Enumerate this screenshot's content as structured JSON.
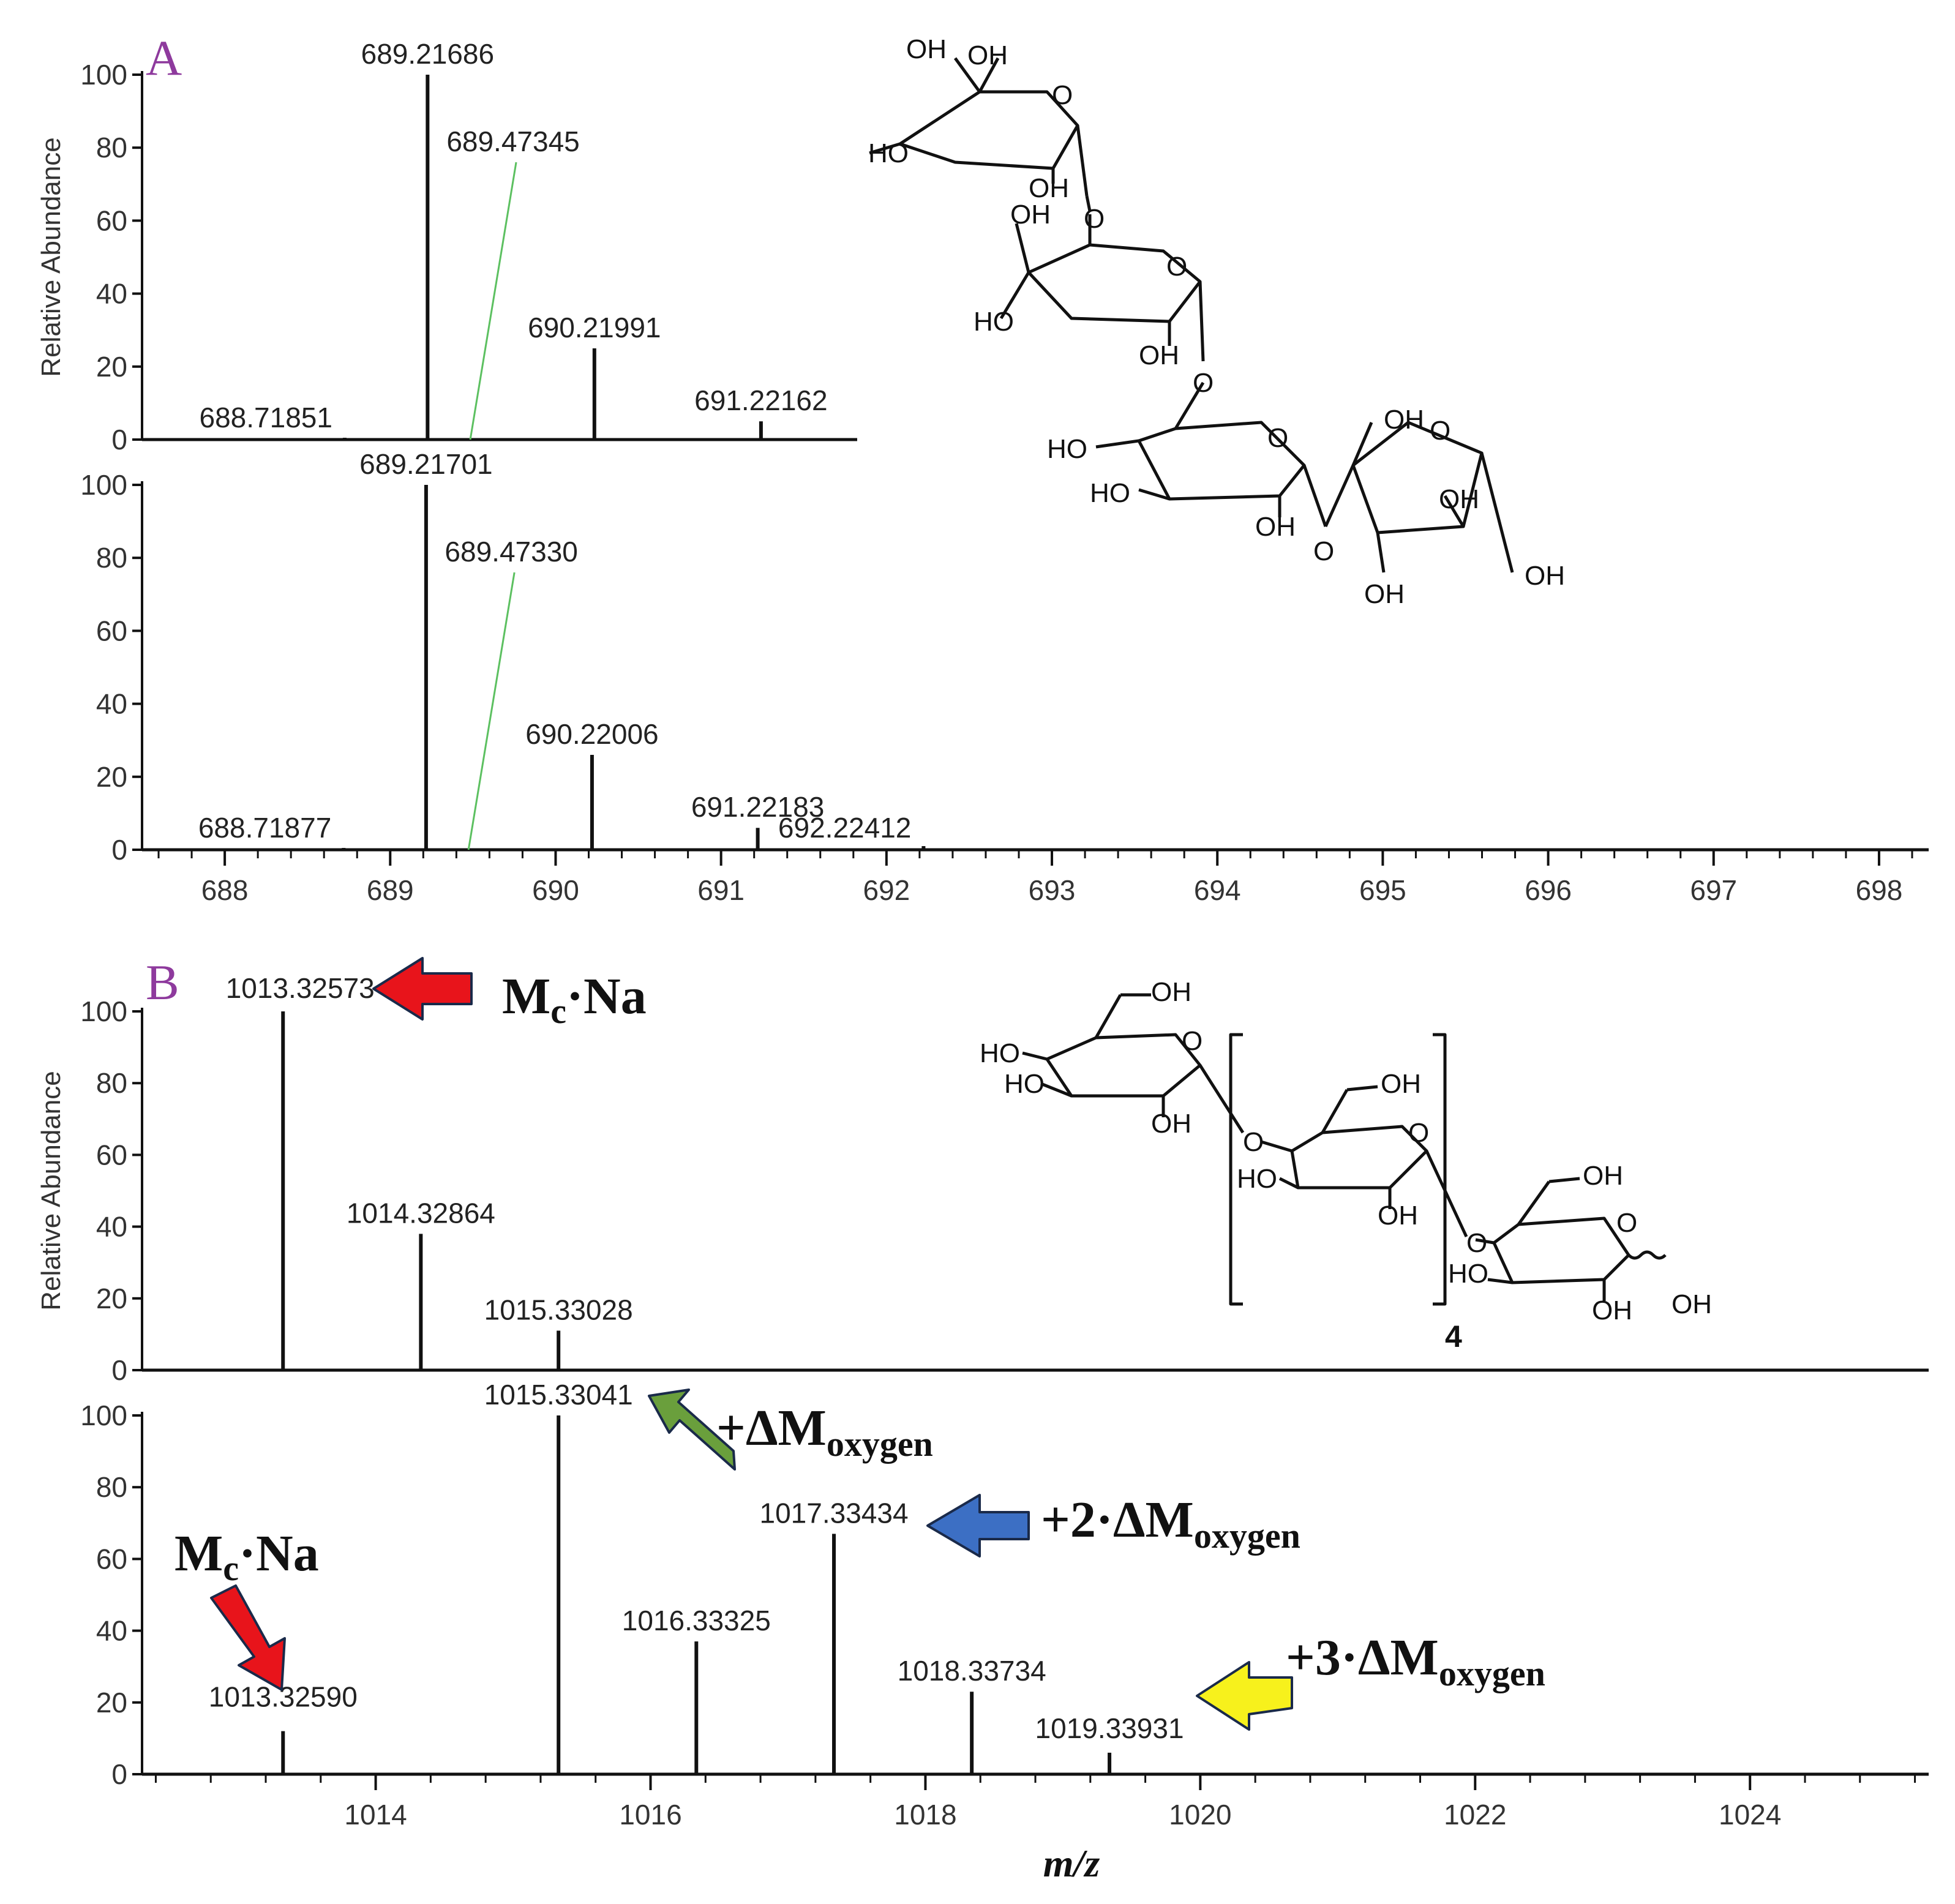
{
  "panels": {
    "A": {
      "letter": "A"
    },
    "B": {
      "letter": "B",
      "repeat_count": "4"
    }
  },
  "chem_labels": {
    "oh": "OH",
    "ho": "HO",
    "o": "O"
  },
  "annotations": {
    "mc_na": "Mc·Na",
    "oxygen_1": "+ΔMoxygen",
    "oxygen_2": "+2·ΔMoxygen",
    "oxygen_3": "+3·ΔMoxygen",
    "colors": {
      "red": "#e8141b",
      "green": "#6a9f3c",
      "blue": "#3c6fc4",
      "yellow": "#f7f11c"
    }
  },
  "chart_data": [
    {
      "id": "A-top",
      "type": "bar",
      "xlabel": "",
      "ylabel": "Relative Abundance",
      "xlim": [
        687.5,
        691.8
      ],
      "ylim": [
        0,
        100
      ],
      "yticks": [
        0,
        20,
        40,
        60,
        80,
        100
      ],
      "peaks": [
        {
          "mz": 688.71851,
          "y": 0.5,
          "label": "688.71851"
        },
        {
          "mz": 689.21686,
          "y": 100,
          "label": "689.21686"
        },
        {
          "mz": 689.47345,
          "y": 0.5,
          "label": "689.47345"
        },
        {
          "mz": 690.21991,
          "y": 25,
          "label": "690.21991"
        },
        {
          "mz": 691.22162,
          "y": 5,
          "label": "691.22162"
        }
      ]
    },
    {
      "id": "A-bottom",
      "type": "bar",
      "xlabel": "",
      "ylabel": "Relative Abundance",
      "xlim": [
        687.5,
        698.3
      ],
      "ylim": [
        0,
        100
      ],
      "yticks": [
        0,
        20,
        40,
        60,
        80,
        100
      ],
      "xticks": [
        688,
        689,
        690,
        691,
        692,
        693,
        694,
        695,
        696,
        697,
        698
      ],
      "peaks": [
        {
          "mz": 688.71877,
          "y": 0.5,
          "label": "688.71877"
        },
        {
          "mz": 689.21701,
          "y": 100,
          "label": "689.21701"
        },
        {
          "mz": 689.4733,
          "y": 0.5,
          "label": "689.47330"
        },
        {
          "mz": 690.22006,
          "y": 26,
          "label": "690.22006"
        },
        {
          "mz": 691.22183,
          "y": 6,
          "label": "691.22183"
        },
        {
          "mz": 692.22412,
          "y": 1,
          "label": "692.22412"
        }
      ]
    },
    {
      "id": "B-top",
      "type": "bar",
      "xlabel": "",
      "ylabel": "Relative Abundance",
      "xlim": [
        1012.3,
        1025.3
      ],
      "ylim": [
        0,
        100
      ],
      "yticks": [
        0,
        20,
        40,
        60,
        80,
        100
      ],
      "peaks": [
        {
          "mz": 1013.32573,
          "y": 100,
          "label": "1013.32573"
        },
        {
          "mz": 1014.32864,
          "y": 38,
          "label": "1014.32864"
        },
        {
          "mz": 1015.33028,
          "y": 11,
          "label": "1015.33028"
        }
      ]
    },
    {
      "id": "B-bottom",
      "type": "bar",
      "xlabel": "m/z",
      "ylabel": "Relative Abundance",
      "xlim": [
        1012.3,
        1025.3
      ],
      "ylim": [
        0,
        100
      ],
      "yticks": [
        0,
        20,
        40,
        60,
        80,
        100
      ],
      "xticks": [
        1014,
        1016,
        1018,
        1020,
        1022,
        1024
      ],
      "peaks": [
        {
          "mz": 1013.3259,
          "y": 12,
          "label": "1013.32590"
        },
        {
          "mz": 1015.33041,
          "y": 100,
          "label": "1015.33041"
        },
        {
          "mz": 1016.33325,
          "y": 37,
          "label": "1016.33325"
        },
        {
          "mz": 1017.33434,
          "y": 67,
          "label": "1017.33434"
        },
        {
          "mz": 1018.33734,
          "y": 23,
          "label": "1018.33734"
        },
        {
          "mz": 1019.33931,
          "y": 6,
          "label": "1019.33931"
        }
      ]
    }
  ]
}
